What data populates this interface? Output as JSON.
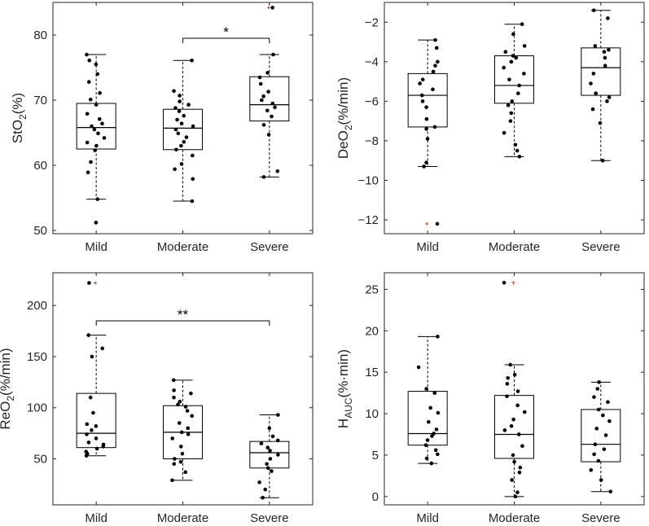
{
  "chart_data": [
    {
      "type": "box",
      "ylabel": {
        "main": "StO",
        "sub": "2",
        "tail": "(%)"
      },
      "categories": [
        "Mild",
        "Moderate",
        "Severe"
      ],
      "ylim": [
        49.5,
        85
      ],
      "yticks": [
        50,
        60,
        70,
        80
      ],
      "boxes": [
        {
          "name": "Mild",
          "q1": 62.5,
          "median": 65.8,
          "q3": 69.5,
          "whisker_low": 54.8,
          "whisker_high": 77.0
        },
        {
          "name": "Moderate",
          "q1": 62.4,
          "median": 65.7,
          "q3": 68.6,
          "whisker_low": 54.5,
          "whisker_high": 76.1
        },
        {
          "name": "Severe",
          "q1": 66.8,
          "median": 69.3,
          "q3": 73.6,
          "whisker_low": 58.2,
          "whisker_high": 77.0
        }
      ],
      "points": [
        [
          51.2,
          54.8,
          58.9,
          60.5,
          62.3,
          63.0,
          63.5,
          64.2,
          64.9,
          65.5,
          66.0,
          66.4,
          67.1,
          67.9,
          69.3,
          70.1,
          71.1,
          72.8,
          74.0,
          75.5,
          76.1,
          77.0
        ],
        [
          54.5,
          57.9,
          59.4,
          60.2,
          61.5,
          62.4,
          63.0,
          63.6,
          64.3,
          64.9,
          65.5,
          66.0,
          66.4,
          67.0,
          67.6,
          68.3,
          68.8,
          69.3,
          69.8,
          70.7,
          71.4,
          76.1
        ],
        [
          58.2,
          59.1,
          64.7,
          66.2,
          67.5,
          68.4,
          68.9,
          69.5,
          70.0,
          70.6,
          71.3,
          72.5,
          73.5,
          74.2,
          77.0,
          84.2
        ]
      ],
      "outliers": [
        [
          51.2
        ],
        [],
        [
          84.2
        ]
      ],
      "significance": [
        {
          "from": "Moderate",
          "to": "Severe",
          "y": 79.5,
          "label": "*"
        }
      ]
    },
    {
      "type": "box",
      "ylabel": {
        "main": "DeO",
        "sub": "2",
        "tail": "(%/min)"
      },
      "categories": [
        "Mild",
        "Moderate",
        "Severe"
      ],
      "ylim": [
        -12.7,
        -1.0
      ],
      "yticks": [
        -12,
        -10,
        -8,
        -6,
        -4,
        -2
      ],
      "boxes": [
        {
          "name": "Mild",
          "q1": -7.3,
          "median": -5.7,
          "q3": -4.6,
          "whisker_low": -9.3,
          "whisker_high": -2.9
        },
        {
          "name": "Moderate",
          "q1": -6.1,
          "median": -5.2,
          "q3": -3.7,
          "whisker_low": -8.8,
          "whisker_high": -2.1
        },
        {
          "name": "Severe",
          "q1": -5.7,
          "median": -4.3,
          "q3": -3.3,
          "whisker_low": -9.0,
          "whisker_high": -1.4
        }
      ],
      "points": [
        [
          -12.2,
          -9.3,
          -9.1,
          -7.9,
          -7.4,
          -7.3,
          -6.9,
          -6.3,
          -6.0,
          -5.7,
          -5.4,
          -5.1,
          -4.9,
          -4.5,
          -4.2,
          -4.0,
          -3.3,
          -2.9
        ],
        [
          -8.8,
          -8.5,
          -8.2,
          -7.6,
          -7.0,
          -6.6,
          -6.2,
          -6.0,
          -5.6,
          -5.2,
          -4.9,
          -4.6,
          -4.3,
          -4.0,
          -3.8,
          -3.7,
          -3.5,
          -3.2,
          -2.6,
          -2.1
        ],
        [
          -9.0,
          -7.1,
          -6.4,
          -6.0,
          -5.8,
          -5.6,
          -5.1,
          -4.6,
          -4.2,
          -3.8,
          -3.5,
          -3.4,
          -3.2,
          -1.8,
          -1.4
        ]
      ],
      "outliers": [
        [
          -12.2
        ],
        [],
        []
      ],
      "significance": []
    },
    {
      "type": "box",
      "ylabel": {
        "main": "ReO",
        "sub": "2",
        "tail": "(%/min)"
      },
      "categories": [
        "Mild",
        "Moderate",
        "Severe"
      ],
      "ylim": [
        5,
        232
      ],
      "yticks": [
        50,
        100,
        150,
        200
      ],
      "boxes": [
        {
          "name": "Mild",
          "q1": 61,
          "median": 75,
          "q3": 114,
          "whisker_low": 53,
          "whisker_high": 171
        },
        {
          "name": "Moderate",
          "q1": 50,
          "median": 76,
          "q3": 102,
          "whisker_low": 29,
          "whisker_high": 127
        },
        {
          "name": "Severe",
          "q1": 41,
          "median": 56,
          "q3": 67,
          "whisker_low": 12,
          "whisker_high": 93
        }
      ],
      "points": [
        [
          53,
          55,
          57,
          60,
          62,
          64,
          66,
          70,
          74,
          78,
          82,
          84,
          95,
          110,
          150,
          158,
          171,
          222
        ],
        [
          29,
          37,
          45,
          47,
          50,
          55,
          62,
          70,
          74,
          76,
          80,
          85,
          92,
          97,
          101,
          103,
          106,
          110,
          114,
          117,
          127
        ],
        [
          12,
          20,
          27,
          38,
          41,
          45,
          50,
          54,
          58,
          61,
          65,
          68,
          72,
          80,
          93
        ]
      ],
      "outliers": [
        [
          222
        ],
        [],
        []
      ],
      "significance": [
        {
          "from": "Mild",
          "to": "Severe",
          "y": 185,
          "label": "**"
        }
      ]
    },
    {
      "type": "box",
      "ylabel": {
        "main": "H",
        "sub": "AUC",
        "tail": "(%·min)"
      },
      "categories": [
        "Mild",
        "Moderate",
        "Severe"
      ],
      "ylim": [
        -1,
        27
      ],
      "yticks": [
        0,
        5,
        10,
        15,
        20,
        25
      ],
      "boxes": [
        {
          "name": "Mild",
          "q1": 6.2,
          "median": 7.6,
          "q3": 12.7,
          "whisker_low": 4.0,
          "whisker_high": 19.3
        },
        {
          "name": "Moderate",
          "q1": 4.6,
          "median": 7.5,
          "q3": 12.2,
          "whisker_low": 0.0,
          "whisker_high": 15.9
        },
        {
          "name": "Severe",
          "q1": 4.2,
          "median": 6.3,
          "q3": 10.5,
          "whisker_low": 0.6,
          "whisker_high": 13.8
        }
      ],
      "points": [
        [
          4.0,
          4.6,
          5.1,
          5.6,
          6.2,
          6.8,
          7.3,
          7.6,
          8.1,
          9.0,
          10.1,
          10.7,
          12.5,
          13.0,
          15.6,
          19.3
        ],
        [
          0.0,
          0.5,
          2.0,
          2.9,
          3.5,
          4.2,
          5.0,
          6.1,
          7.5,
          8.0,
          8.5,
          9.3,
          10.2,
          11.0,
          12.1,
          12.7,
          13.6,
          14.3,
          14.7,
          15.9,
          25.8
        ],
        [
          0.6,
          2.0,
          3.2,
          4.3,
          5.1,
          5.7,
          6.3,
          7.4,
          8.2,
          9.1,
          9.8,
          10.5,
          11.4,
          12.0,
          13.0,
          13.8
        ]
      ],
      "outliers": [
        [],
        [
          25.8
        ],
        []
      ],
      "significance": []
    }
  ]
}
